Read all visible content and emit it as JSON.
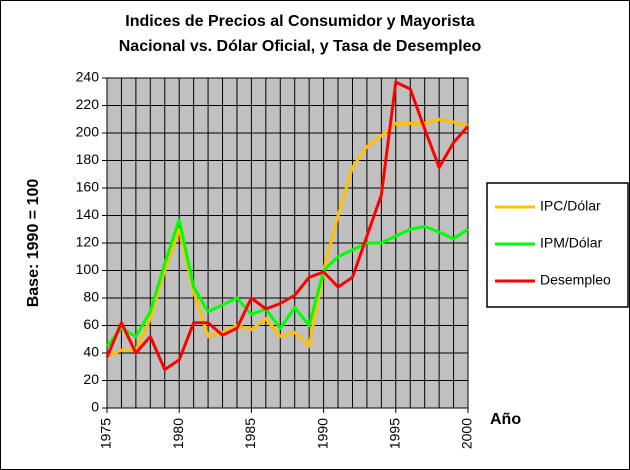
{
  "chart_data": {
    "type": "line",
    "title": [
      "Indices de Precios al Consumidor y Mayorista",
      "Nacional vs. Dólar Oficial, y Tasa de Desempleo"
    ],
    "y_label": "Base: 1990 = 100",
    "x_label": "Año",
    "x": [
      1975,
      1976,
      1977,
      1978,
      1979,
      1980,
      1981,
      1982,
      1983,
      1984,
      1985,
      1986,
      1987,
      1988,
      1989,
      1990,
      1991,
      1992,
      1993,
      1994,
      1995,
      1996,
      1997,
      1998,
      1999,
      2000
    ],
    "series": [
      {
        "name": "IPC/Dólar",
        "color": "#ffc000",
        "values": [
          38,
          42,
          42,
          65,
          100,
          130,
          85,
          52,
          55,
          60,
          57,
          65,
          52,
          55,
          45,
          100,
          140,
          175,
          190,
          198,
          207,
          207,
          207,
          210,
          208,
          205
        ]
      },
      {
        "name": "IPM/Dólar",
        "color": "#00ff00",
        "values": [
          45,
          58,
          52,
          70,
          105,
          137,
          88,
          70,
          75,
          80,
          68,
          72,
          58,
          73,
          60,
          100,
          110,
          115,
          120,
          120,
          125,
          130,
          132,
          128,
          123,
          130
        ]
      },
      {
        "name": "Desempleo",
        "color": "#ff0000",
        "values": [
          37,
          62,
          40,
          52,
          28,
          35,
          62,
          62,
          53,
          58,
          80,
          72,
          76,
          82,
          95,
          99,
          88,
          95,
          125,
          155,
          237,
          232,
          203,
          175,
          193,
          205
        ]
      }
    ],
    "xlim": [
      1975,
      2000
    ],
    "xticks": [
      1975,
      1980,
      1985,
      1990,
      1995,
      2000
    ],
    "ylim": [
      0,
      240
    ],
    "yticks": [
      0,
      20,
      40,
      60,
      80,
      100,
      120,
      140,
      160,
      180,
      200,
      220,
      240
    ],
    "grid": true,
    "legend": "right"
  }
}
